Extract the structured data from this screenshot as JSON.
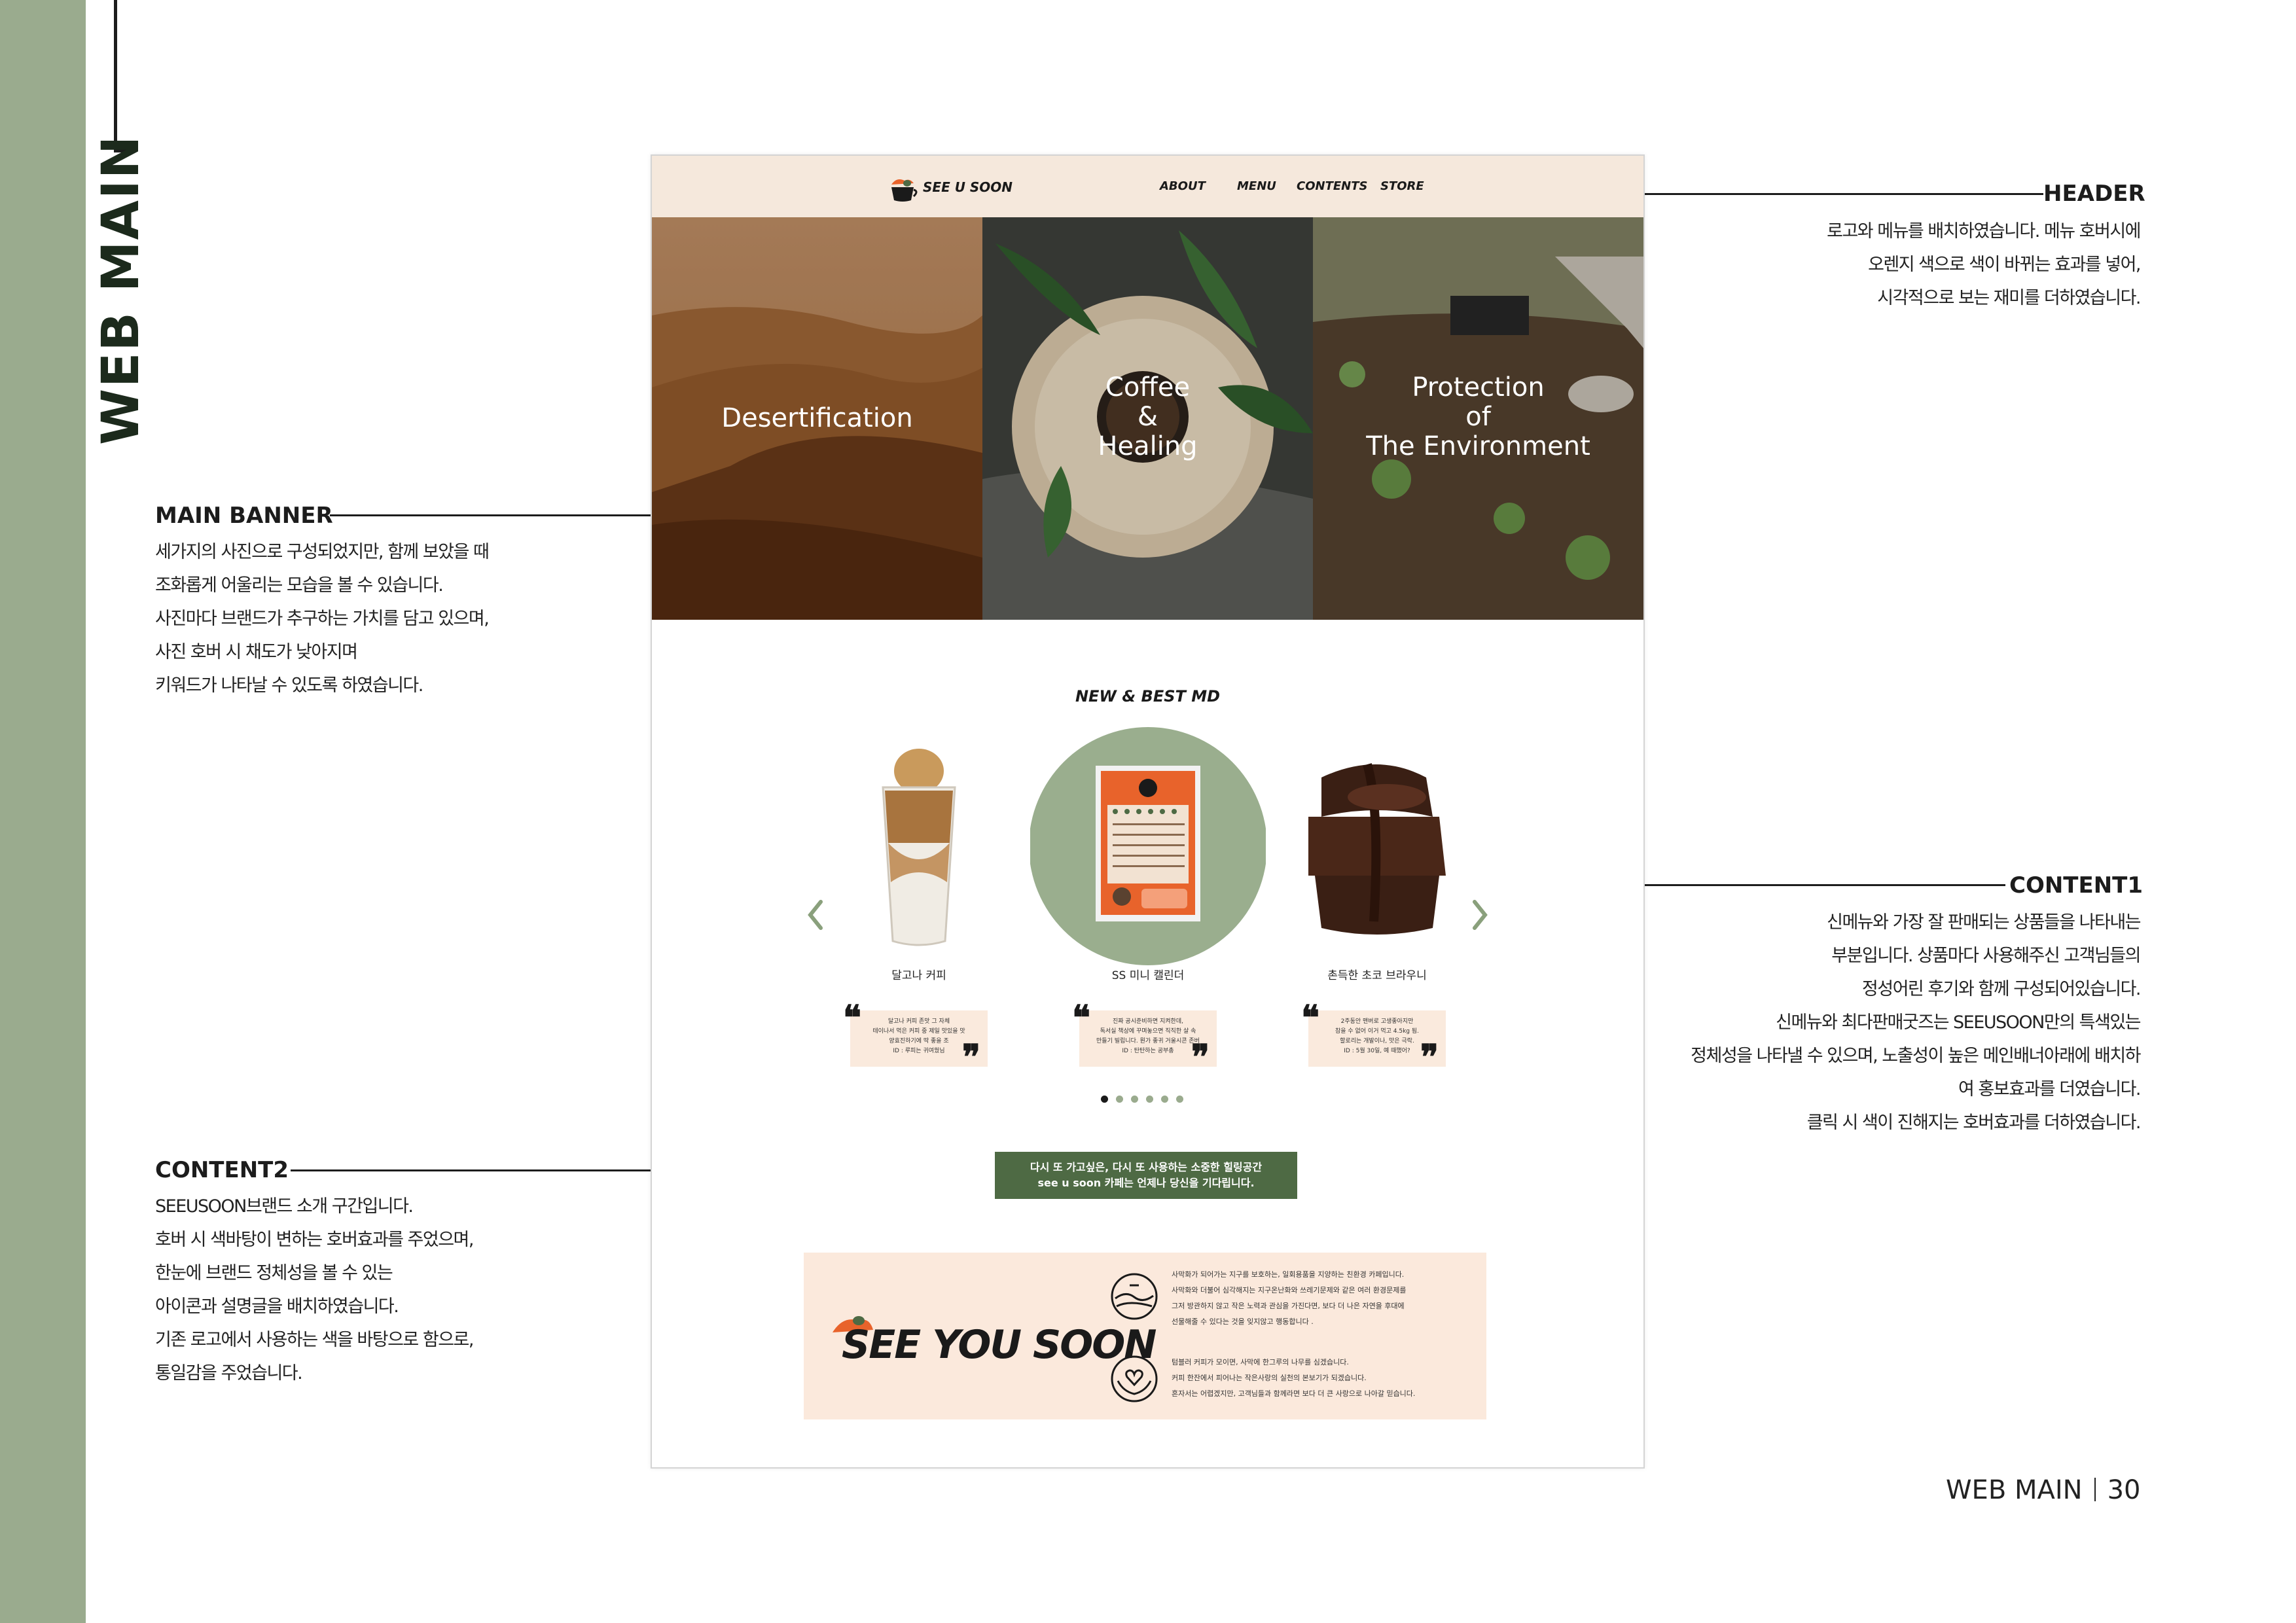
{
  "page": {
    "vertical_title": "WEB MAIN",
    "footer_section": "WEB MAIN",
    "footer_page": "30"
  },
  "annotations": {
    "main_banner": {
      "title": "MAIN BANNER",
      "body": "세가지의 사진으로 구성되었지만, 함께 보았을 때\n조화롭게 어울리는 모습을 볼 수 있습니다.\n사진마다 브랜드가 추구하는 가치를 담고 있으며,\n사진 호버 시 채도가 낮아지며\n키워드가 나타날 수 있도록 하였습니다."
    },
    "content2": {
      "title": "CONTENT2",
      "body": "SEEUSOON브랜드 소개 구간입니다.\n호버 시 색바탕이 변하는 호버효과를 주었으며,\n한눈에 브랜드 정체성을 볼 수 있는\n아이콘과 설명글을 배치하였습니다.\n기존 로고에서 사용하는 색을 바탕으로 함으로,\n통일감을 주었습니다."
    },
    "header": {
      "title": "HEADER",
      "body": "로고와 메뉴를 배치하였습니다. 메뉴 호버시에\n오렌지 색으로 색이 바뀌는 효과를 넣어,\n시각적으로 보는 재미를 더하였습니다."
    },
    "content1": {
      "title": "CONTENT1",
      "body": "신메뉴와 가장 잘 판매되는 상품들을 나타내는\n부분입니다. 상품마다 사용해주신 고객님들의\n정성어린 후기와 함께 구성되어있습니다.\n신메뉴와 최다판매굿즈는 SEEUSOON만의 특색있는\n정체성을 나타낼 수 있으며, 노출성이 높은 메인배너아래에 배치하\n여 홍보효과를 더였습니다.\n클릭 시 색이 진해지는 호버효과를 더하였습니다."
    }
  },
  "site": {
    "logo_text": "SEE U SOON",
    "nav": [
      "ABOUT",
      "MENU",
      "CONTENTS",
      "STORE"
    ],
    "banner": [
      {
        "label": "Desertification"
      },
      {
        "label": "Coffee\n&\nHealing"
      },
      {
        "label": "Protection\nof\nThe Environment"
      }
    ],
    "section_title": "NEW & BEST MD",
    "products": [
      {
        "name": "달고나 커피",
        "review": "달고나 커피 존맛 그 자체\n테이나서 먹은 커피 중 제일 맛있을 맛\n양효진하기에 딱 좋을 조\nID : 루피는 귀여웠님"
      },
      {
        "name": "SS 미니 캘린더",
        "review": "진짜 공시준비하면 지켜한데,\n독서실 책상에 꾸며놓으면 직직한 살 속\n만들기 빌립니다. 뭔가 좋귀 거울시콘 존버\nID : 탄탄하는 공부총"
      },
      {
        "name": "촌득한 초코 브라우니",
        "review": "2주동안 맨버로 고생좋아지만\n참을 수 없어 이거 먹고 4.5kg 됨.\n할로리는 개발이나, 맛은 극락.\nID : 5월 30일, 예 때했어?"
      }
    ],
    "pager_count": 6,
    "pager_active": 0,
    "cta_text": "다시 또 가고싶은, 다시 또 사용하는 소중한 힐링공간\nsee u soon 카페는 언제나 당신을 기다립니다.",
    "brand": {
      "logo_text": "SEE YOU SOON",
      "text1": "사막화가 되어가는 지구를 보호하는, 일회용품을 지양하는 친환경 카페입니다.\n사막화와 더불어 심각해지는 지구온난화와 쓰레기문제와 같은 여러 환경문제를\n그저 방관하지 않고 작은 노력과 관심을 가진다면, 보다 더 나은 자연을 후대에\n선물해줄 수 있다는 것을 잊지않고 행동합니다 .",
      "text2": "텀블러 커피가 모이면, 사막에 한그루의 나무를 심겠습니다.\n커피 한잔에서 피어나는 작은사랑의 실천의 본보기가 되겠습니다.\n혼자서는 어렵겠지만, 고객님들과 함께라면 보다 더 큰 사랑으로 나아갈 믿습니다."
    }
  },
  "colors": {
    "sidebar_green": "#9aab8e",
    "header_beige": "#f5e8dc",
    "cta_green": "#4e6a44",
    "brand_bg": "#fbe9dc",
    "accent_orange": "#e8632b"
  },
  "icons": [
    "chevron-left-icon",
    "chevron-right-icon",
    "quote-open-icon",
    "quote-close-icon",
    "desert-icon",
    "heart-hands-icon",
    "cup-logo-icon"
  ]
}
